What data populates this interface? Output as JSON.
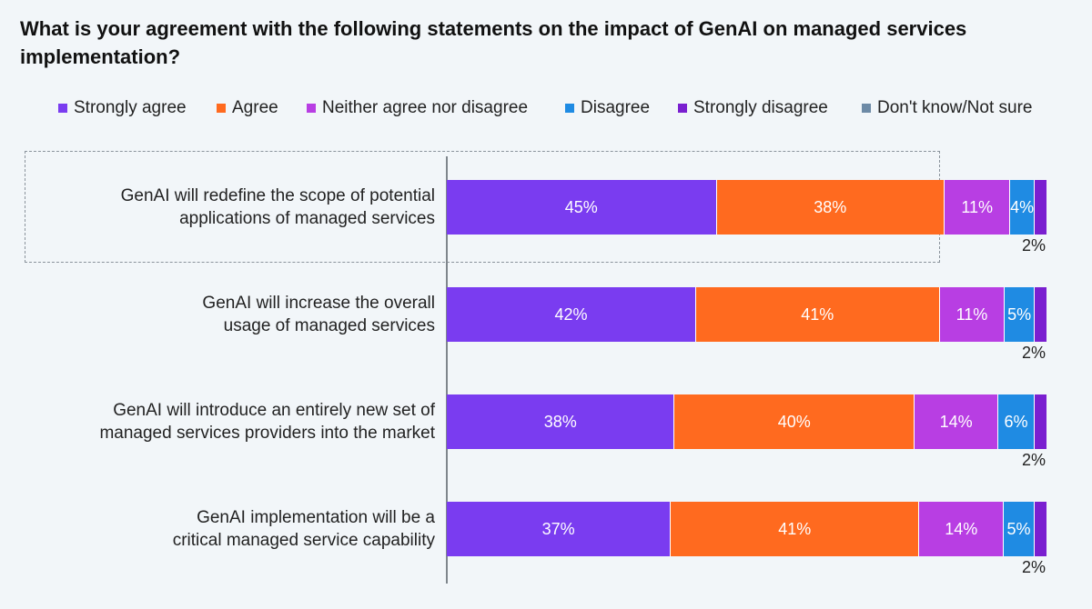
{
  "title": "What is your agreement with the following statements on the impact of GenAI on managed services implementation?",
  "colors": {
    "strongly_agree": "#7a3cf0",
    "agree": "#ff6a1f",
    "neither": "#b83ee3",
    "disagree": "#1f8be3",
    "strongly_disagree": "#7a1fd0",
    "dont_know": "#6d8aa6"
  },
  "chart_data": {
    "type": "bar",
    "orientation": "horizontal",
    "stacked": true,
    "categories": [
      "GenAI will redefine the scope of potential applications of managed services",
      "GenAI will increase the overall usage of managed services",
      "GenAI will introduce an entirely new set of managed services providers into the market",
      "GenAI implementation will be a critical managed service capability"
    ],
    "category_lines": [
      [
        "GenAI will redefine the scope of potential",
        "applications of managed services"
      ],
      [
        "GenAI will increase the overall",
        "usage of managed services"
      ],
      [
        "GenAI will introduce an entirely new set of",
        "managed services providers into the market"
      ],
      [
        "GenAI implementation will be a",
        "critical managed service capability"
      ]
    ],
    "series": [
      {
        "name": "Strongly agree",
        "values": [
          45,
          42,
          38,
          37
        ]
      },
      {
        "name": "Agree",
        "values": [
          38,
          41,
          40,
          41
        ]
      },
      {
        "name": "Neither agree nor disagree",
        "values": [
          11,
          11,
          14,
          14
        ]
      },
      {
        "name": "Disagree",
        "values": [
          4,
          5,
          6,
          5
        ]
      },
      {
        "name": "Strongly disagree",
        "values": [
          2,
          2,
          2,
          2
        ]
      },
      {
        "name": "Don't know/Not sure",
        "values": [
          0,
          0,
          0,
          0
        ]
      }
    ],
    "value_labels": [
      [
        "45%",
        "38%",
        "11%",
        "4%",
        "2%"
      ],
      [
        "42%",
        "41%",
        "11%",
        "5%",
        "2%"
      ],
      [
        "38%",
        "40%",
        "14%",
        "6%",
        "2%"
      ],
      [
        "37%",
        "41%",
        "14%",
        "5%",
        "2%"
      ]
    ],
    "xlim": [
      0,
      100
    ],
    "unit": "%",
    "legend_position": "top",
    "highlighted_category_index": 0
  }
}
